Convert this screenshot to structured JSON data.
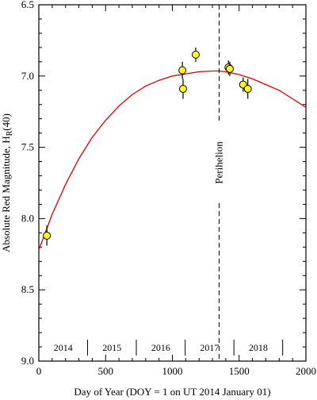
{
  "chart_data": {
    "type": "scatter",
    "xlabel": "Day of Year (DOY = 1 on UT 2014 January 01)",
    "ylabel_main": "Absolute Red Magnitude, H",
    "ylabel_sub": "R",
    "ylabel_tail": "(40)",
    "xlim": [
      0,
      2000
    ],
    "ylim": [
      9.0,
      6.5
    ],
    "y_inverted": true,
    "x_ticks": [
      0,
      500,
      1000,
      1500,
      2000
    ],
    "x_tick_labels": [
      "0",
      "500",
      "1000",
      "1500",
      "2000"
    ],
    "y_ticks": [
      6.5,
      7.0,
      7.5,
      8.0,
      8.5,
      9.0
    ],
    "y_tick_labels": [
      "6.5",
      "7.0",
      "7.5",
      "8.0",
      "8.5",
      "9.0"
    ],
    "grid": false,
    "points": [
      {
        "x": 60,
        "y": 8.12,
        "err": 0.07
      },
      {
        "x": 1075,
        "y": 6.96,
        "err": 0.06
      },
      {
        "x": 1080,
        "y": 7.09,
        "err": 0.07
      },
      {
        "x": 1175,
        "y": 6.85,
        "err": 0.05
      },
      {
        "x": 1420,
        "y": 6.94,
        "err": 0.05
      },
      {
        "x": 1430,
        "y": 6.95,
        "err": 0.05
      },
      {
        "x": 1530,
        "y": 7.06,
        "err": 0.05
      },
      {
        "x": 1565,
        "y": 7.09,
        "err": 0.07
      }
    ],
    "fit_curve": {
      "color": "#e00000",
      "x": [
        0,
        100,
        200,
        300,
        400,
        500,
        600,
        700,
        800,
        900,
        1000,
        1100,
        1200,
        1300,
        1350,
        1400,
        1500,
        1600,
        1700,
        1800,
        1900,
        2000
      ],
      "y": [
        8.22,
        7.97,
        7.76,
        7.58,
        7.43,
        7.31,
        7.21,
        7.13,
        7.07,
        7.03,
        7.0,
        6.985,
        6.97,
        6.965,
        6.965,
        6.97,
        6.99,
        7.02,
        7.06,
        7.1,
        7.16,
        7.22
      ]
    },
    "perihelion": {
      "x": 1350,
      "label": "Perihelion"
    },
    "years": [
      {
        "label": "2014",
        "start": 0,
        "end": 365
      },
      {
        "label": "2015",
        "start": 365,
        "end": 730
      },
      {
        "label": "2016",
        "start": 730,
        "end": 1096
      },
      {
        "label": "2017",
        "start": 1096,
        "end": 1461
      },
      {
        "label": "2018",
        "start": 1461,
        "end": 1826
      }
    ],
    "colors": {
      "points": "#ffff00",
      "fit": "#e00000"
    }
  }
}
